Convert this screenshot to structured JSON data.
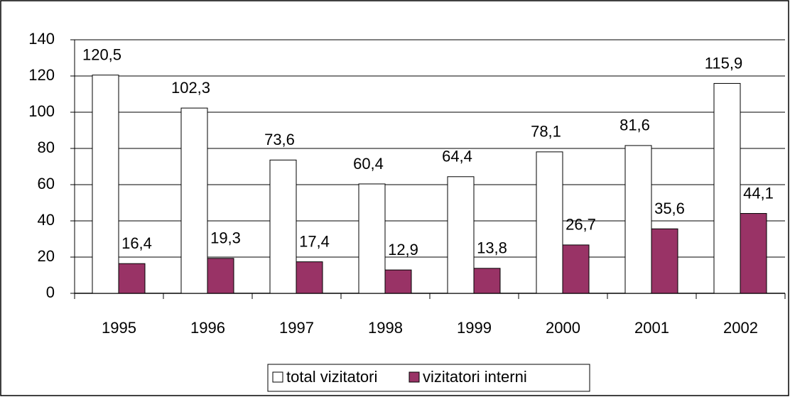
{
  "chart_data": {
    "type": "bar",
    "categories": [
      "1995",
      "1996",
      "1997",
      "1998",
      "1999",
      "2000",
      "2001",
      "2002"
    ],
    "series": [
      {
        "name": "total vizitatori",
        "color": "#ffffff",
        "values": [
          120.5,
          102.3,
          73.6,
          60.4,
          64.4,
          78.1,
          81.6,
          115.9
        ],
        "value_labels": [
          "120,5",
          "102,3",
          "73,6",
          "60,4",
          "64,4",
          "78,1",
          "81,6",
          "115,9"
        ]
      },
      {
        "name": "vizitatori interni",
        "color": "#993366",
        "values": [
          16.4,
          19.3,
          17.4,
          12.9,
          13.8,
          26.7,
          35.6,
          44.1
        ],
        "value_labels": [
          "16,4",
          "19,3",
          "17,4",
          "12,9",
          "13,8",
          "26,7",
          "35,6",
          "44,1"
        ]
      }
    ],
    "ylim": [
      0,
      140
    ],
    "yticks": [
      0,
      20,
      40,
      60,
      80,
      100,
      120,
      140
    ],
    "grid": true,
    "legend": "bottom"
  }
}
